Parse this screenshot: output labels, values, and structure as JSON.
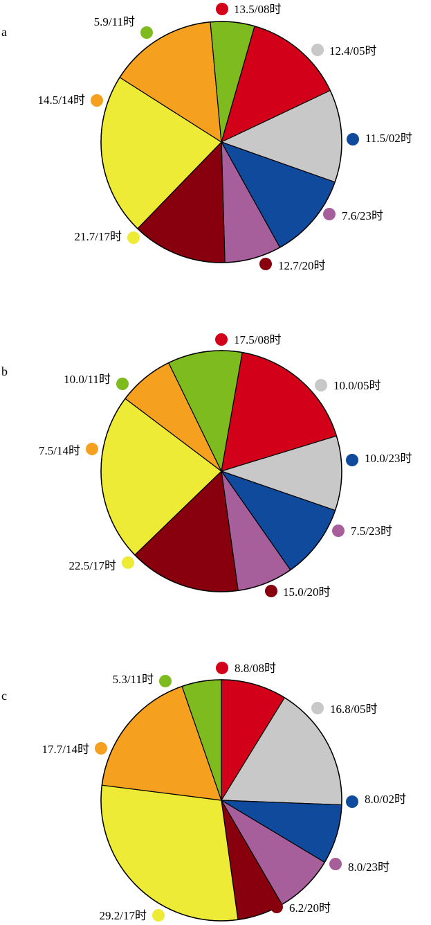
{
  "chart_data": [
    {
      "type": "pie",
      "panel": "a",
      "slices": [
        {
          "label": "13.5/08时",
          "value": 13.5,
          "color": "#d3001a"
        },
        {
          "label": "12.4/05时",
          "value": 12.4,
          "color": "#c8c8c8"
        },
        {
          "label": "11.5/02时",
          "value": 11.5,
          "color": "#0f4a9c"
        },
        {
          "label": "7.6/23时",
          "value": 7.6,
          "color": "#a65f9b"
        },
        {
          "label": "12.7/20时",
          "value": 12.7,
          "color": "#88000d"
        },
        {
          "label": "21.7/17时",
          "value": 21.7,
          "color": "#eeeb36"
        },
        {
          "label": "14.5/14时",
          "value": 14.5,
          "color": "#f5a01f"
        },
        {
          "label": "5.9/11时",
          "value": 5.9,
          "color": "#7ebb1f"
        }
      ]
    },
    {
      "type": "pie",
      "panel": "b",
      "slices": [
        {
          "label": "17.5/08时",
          "value": 17.5,
          "color": "#d3001a"
        },
        {
          "label": "10.0/05时",
          "value": 10.0,
          "color": "#c8c8c8"
        },
        {
          "label": "10.0/23时",
          "value": 10.0,
          "color": "#0f4a9c"
        },
        {
          "label": "7.5/23时",
          "value": 7.5,
          "color": "#a65f9b"
        },
        {
          "label": "15.0/20时",
          "value": 15.0,
          "color": "#88000d"
        },
        {
          "label": "22.5/17时",
          "value": 22.5,
          "color": "#eeeb36"
        },
        {
          "label": "7.5/14时",
          "value": 7.5,
          "color": "#f5a01f"
        },
        {
          "label": "10.0/11时",
          "value": 10.0,
          "color": "#7ebb1f"
        }
      ]
    },
    {
      "type": "pie",
      "panel": "c",
      "slices": [
        {
          "label": "8.8/08时",
          "value": 8.8,
          "color": "#d3001a"
        },
        {
          "label": "16.8/05时",
          "value": 16.8,
          "color": "#c8c8c8"
        },
        {
          "label": "8.0/02时",
          "value": 8.0,
          "color": "#0f4a9c"
        },
        {
          "label": "8.0/23时",
          "value": 8.0,
          "color": "#a65f9b"
        },
        {
          "label": "6.2/20时",
          "value": 6.2,
          "color": "#88000d"
        },
        {
          "label": "29.2/17时",
          "value": 29.2,
          "color": "#eeeb36"
        },
        {
          "label": "17.7/14时",
          "value": 17.7,
          "color": "#f5a01f"
        },
        {
          "label": "5.3/11时",
          "value": 5.3,
          "color": "#7ebb1f"
        }
      ]
    }
  ]
}
